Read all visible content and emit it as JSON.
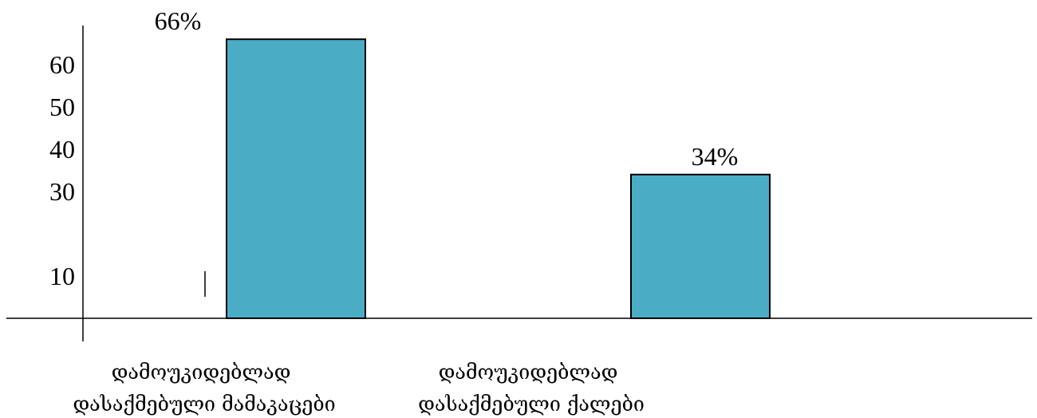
{
  "chart_data": {
    "type": "bar",
    "title": "",
    "xlabel": "",
    "ylabel": "",
    "categories": [
      [
        "დამოუკიდებლად",
        "დასაქმებული მამაკაცები"
      ],
      [
        "დამოუკიდებლად",
        "დასაქმებული ქალები"
      ]
    ],
    "values": [
      66,
      34
    ],
    "data_labels": [
      "66%",
      "34%"
    ],
    "y_ticks": [
      10,
      30,
      40,
      50,
      60
    ],
    "y_tick_labels": [
      "10",
      "30",
      "40",
      "50",
      "60"
    ],
    "ylim": [
      0,
      70
    ],
    "grid": false,
    "legend": "none",
    "colors": {
      "bar_fill": "#4bacc6",
      "bar_stroke": "#000000",
      "axis": "#000000"
    }
  }
}
